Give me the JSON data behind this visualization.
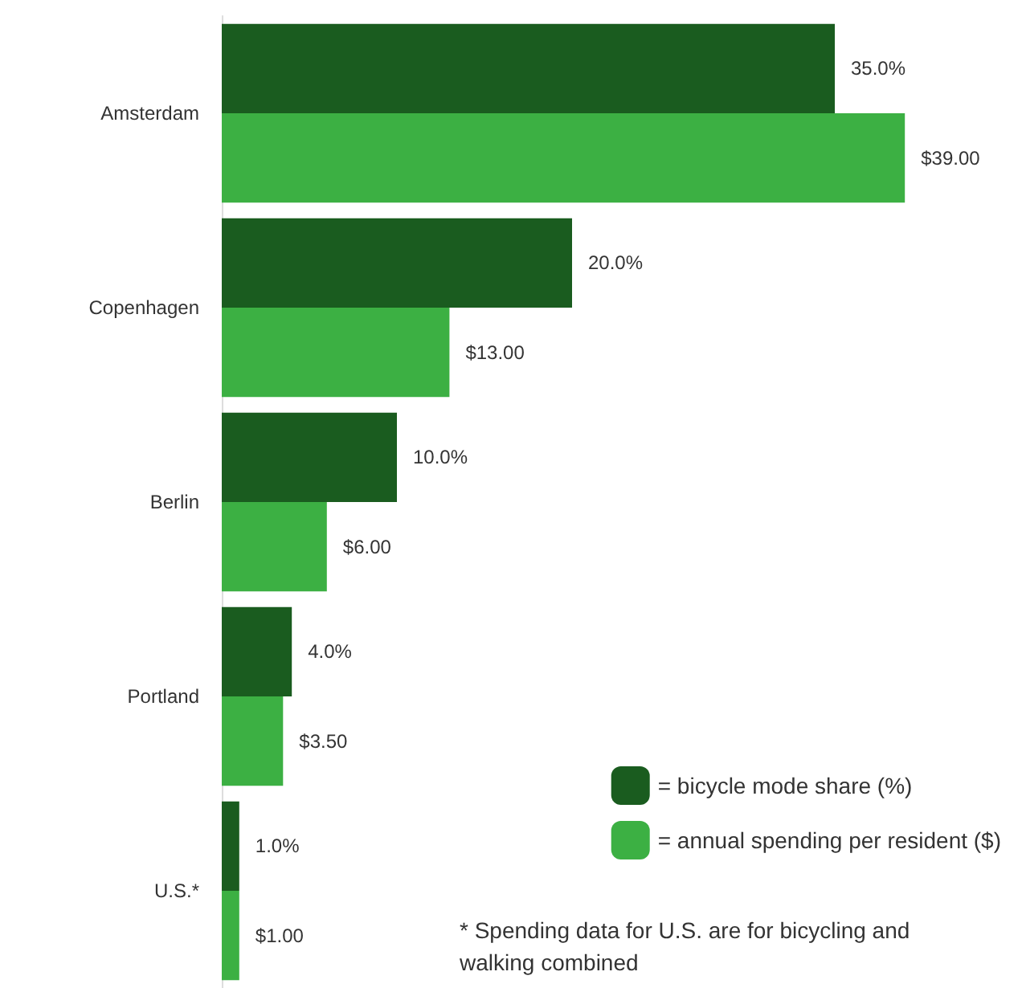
{
  "chart_data": {
    "type": "bar",
    "orientation": "horizontal",
    "categories": [
      "Amsterdam",
      "Copenhagen",
      "Berlin",
      "Portland",
      "U.S.*"
    ],
    "series": [
      {
        "name": "= bicycle mode share (%)",
        "color": "#1a5c1f",
        "values": [
          35.0,
          20.0,
          10.0,
          4.0,
          1.0
        ],
        "value_labels": [
          "35.0%",
          "20.0%",
          "10.0%",
          "4.0%",
          "1.0%"
        ]
      },
      {
        "name": "= annual spending per resident ($)",
        "color": "#3cb043",
        "values": [
          39.0,
          13.0,
          6.0,
          3.5,
          1.0
        ],
        "value_labels": [
          "$39.00",
          "$13.00",
          "$6.00",
          "$3.50",
          "$1.00"
        ]
      }
    ],
    "legend": "bottom right",
    "grid": false,
    "annotations": [
      "* Spending data for U.S. are for bicycling and walking combined"
    ]
  }
}
